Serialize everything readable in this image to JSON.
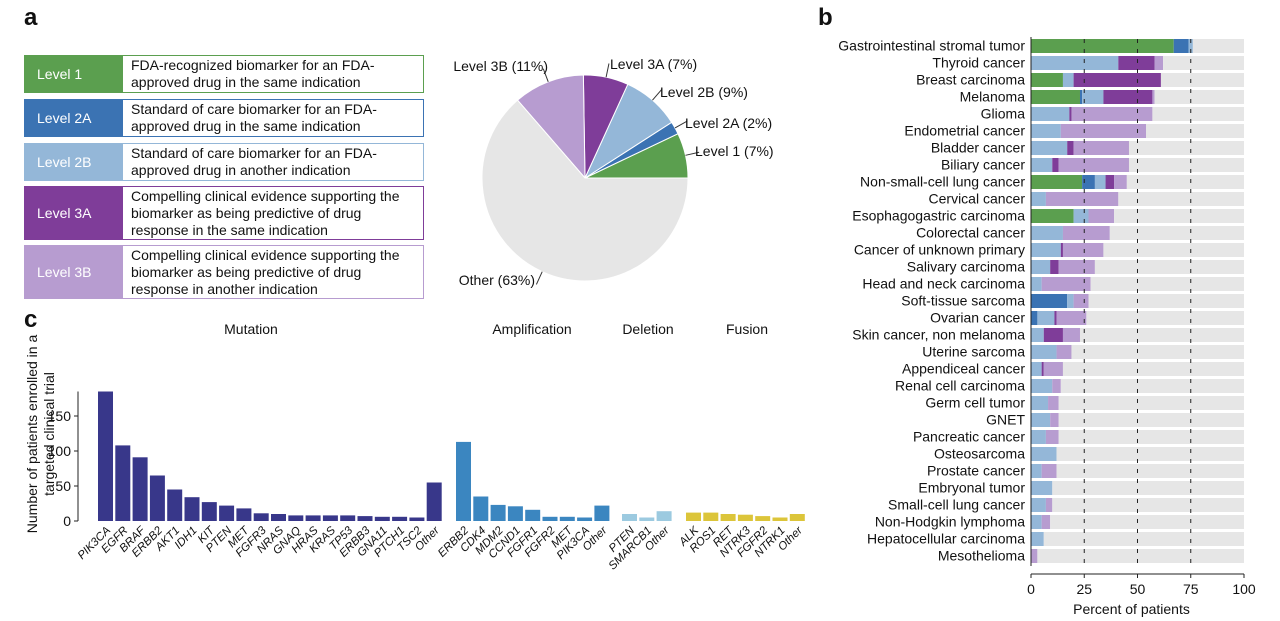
{
  "panel_labels": {
    "a": "a",
    "b": "b",
    "c": "c"
  },
  "levels": [
    {
      "label": "Level 1",
      "color": "#5b9f4f",
      "border": "#5b9f4f",
      "description": "FDA-recognized biomarker for an FDA-approved drug in the same indication"
    },
    {
      "label": "Level 2A",
      "color": "#3b73b3",
      "border": "#3b73b3",
      "description": "Standard of care biomarker for an FDA-approved drug in the same indication"
    },
    {
      "label": "Level 2B",
      "color": "#94b7d8",
      "border": "#94b7d8",
      "description": "Standard of care biomarker for an FDA-approved drug in another indication"
    },
    {
      "label": "Level 3A",
      "color": "#7f3d99",
      "border": "#7f3d99",
      "description": "Compelling clinical evidence supporting the biomarker as being predictive of drug response in the same indication"
    },
    {
      "label": "Level 3B",
      "color": "#b79cd0",
      "border": "#b79cd0",
      "description": "Compelling clinical evidence supporting the biomarker as being predictive of drug response in another indication"
    }
  ],
  "chart_data": [
    {
      "id": "pie",
      "type": "pie",
      "slices": [
        {
          "name": "Level 1",
          "value": 7,
          "label": "Level 1 (7%)",
          "color": "#5b9f4f"
        },
        {
          "name": "Level 2A",
          "value": 2,
          "label": "Level 2A (2%)",
          "color": "#3b73b3"
        },
        {
          "name": "Level 2B",
          "value": 9,
          "label": "Level 2B (9%)",
          "color": "#94b7d8"
        },
        {
          "name": "Level 3A",
          "value": 7,
          "label": "Level 3A (7%)",
          "color": "#7f3d99"
        },
        {
          "name": "Level 3B",
          "value": 11,
          "label": "Level 3B (11%)",
          "color": "#b79cd0"
        },
        {
          "name": "Other",
          "value": 63,
          "label": "Other (63%)",
          "color": "#e6e6e6"
        }
      ]
    },
    {
      "id": "stacked",
      "type": "bar",
      "orientation": "horizontal",
      "stacked": true,
      "xlabel": "Percent of patients",
      "xlim": [
        0,
        100
      ],
      "xticks": [
        0,
        25,
        50,
        75,
        100
      ],
      "dashed_lines_at": [
        25,
        50,
        75
      ],
      "series_order": [
        "Level 1",
        "Level 2A",
        "Level 2B",
        "Level 3A",
        "Level 3B",
        "Other"
      ],
      "colors": [
        "#5b9f4f",
        "#3b73b3",
        "#94b7d8",
        "#7f3d99",
        "#b79cd0",
        "#e6e6e6"
      ],
      "rows": [
        {
          "name": "Gastrointestinal stromal tumor",
          "values": [
            67,
            7,
            2,
            0,
            0,
            24
          ]
        },
        {
          "name": "Thyroid cancer",
          "values": [
            0,
            0,
            41,
            17,
            4,
            38
          ]
        },
        {
          "name": "Breast carcinoma",
          "values": [
            15,
            0,
            5,
            41,
            0,
            39
          ]
        },
        {
          "name": "Melanoma",
          "values": [
            23,
            1,
            10,
            23,
            1,
            42
          ]
        },
        {
          "name": "Glioma",
          "values": [
            0,
            0,
            18,
            1,
            38,
            43
          ]
        },
        {
          "name": "Endometrial cancer",
          "values": [
            0,
            0,
            14,
            0,
            40,
            46
          ]
        },
        {
          "name": "Bladder cancer",
          "values": [
            0,
            0,
            17,
            3,
            26,
            54
          ]
        },
        {
          "name": "Biliary cancer",
          "values": [
            0,
            0,
            10,
            3,
            33,
            54
          ]
        },
        {
          "name": "Non-small-cell lung cancer",
          "values": [
            24,
            6,
            5,
            4,
            6,
            55
          ]
        },
        {
          "name": "Cervical cancer",
          "values": [
            0,
            0,
            7,
            0,
            34,
            59
          ]
        },
        {
          "name": "Esophagogastric carcinoma",
          "values": [
            20,
            0,
            7,
            0,
            12,
            61
          ]
        },
        {
          "name": "Colorectal cancer",
          "values": [
            0,
            0,
            15,
            0,
            22,
            63
          ]
        },
        {
          "name": "Cancer of unknown primary",
          "values": [
            0,
            0,
            14,
            1,
            19,
            66
          ]
        },
        {
          "name": "Salivary carcinoma",
          "values": [
            0,
            0,
            9,
            4,
            17,
            70
          ]
        },
        {
          "name": "Head and neck carcinoma",
          "values": [
            0,
            0,
            5,
            0,
            23,
            72
          ]
        },
        {
          "name": "Soft-tissue sarcoma",
          "values": [
            0,
            17,
            3,
            0,
            7,
            73
          ]
        },
        {
          "name": "Ovarian cancer",
          "values": [
            0,
            3,
            8,
            1,
            14,
            74
          ]
        },
        {
          "name": "Skin cancer, non melanoma",
          "values": [
            0,
            0,
            6,
            9,
            8,
            77
          ]
        },
        {
          "name": "Uterine sarcoma",
          "values": [
            0,
            0,
            12,
            0,
            7,
            81
          ]
        },
        {
          "name": "Appendiceal cancer",
          "values": [
            0,
            0,
            5,
            1,
            9,
            85
          ]
        },
        {
          "name": "Renal cell carcinoma",
          "values": [
            0,
            0,
            10,
            0,
            4,
            86
          ]
        },
        {
          "name": "Germ cell tumor",
          "values": [
            0,
            0,
            8,
            0,
            5,
            87
          ]
        },
        {
          "name": "GNET",
          "values": [
            0,
            0,
            9,
            0,
            4,
            87
          ]
        },
        {
          "name": "Pancreatic cancer",
          "values": [
            0,
            0,
            7,
            0,
            6,
            87
          ]
        },
        {
          "name": "Osteosarcoma",
          "values": [
            0,
            0,
            12,
            0,
            0,
            88
          ]
        },
        {
          "name": "Prostate cancer",
          "values": [
            0,
            0,
            5,
            0,
            7,
            88
          ]
        },
        {
          "name": "Embryonal tumor",
          "values": [
            0,
            0,
            10,
            0,
            0,
            90
          ]
        },
        {
          "name": "Small-cell lung cancer",
          "values": [
            0,
            0,
            7,
            0,
            3,
            90
          ]
        },
        {
          "name": "Non-Hodgkin lymphoma",
          "values": [
            0,
            0,
            5,
            0,
            4,
            91
          ]
        },
        {
          "name": "Hepatocellular carcinoma",
          "values": [
            0,
            0,
            6,
            0,
            0,
            94
          ]
        },
        {
          "name": "Mesothelioma",
          "values": [
            0,
            0,
            0,
            0,
            3,
            97
          ]
        }
      ]
    },
    {
      "id": "genes",
      "type": "bar",
      "ylabel": "Number of patients enrolled in a targeted clinical trial",
      "ylim": [
        0,
        190
      ],
      "yticks": [
        0,
        50,
        100,
        150
      ],
      "groups": [
        {
          "name": "Mutation",
          "color": "#38378a",
          "categories": [
            "PIK3CA",
            "EGFR",
            "BRAF",
            "ERBB2",
            "AKT1",
            "IDH1",
            "KIT",
            "PTEN",
            "MET",
            "FGFR3",
            "NRAS",
            "GNAQ",
            "HRAS",
            "KRAS",
            "TP53",
            "ERBB3",
            "GNA11",
            "PTCH1",
            "TSC2",
            "Other"
          ],
          "values": [
            185,
            108,
            91,
            65,
            45,
            34,
            27,
            22,
            18,
            11,
            10,
            8,
            8,
            8,
            8,
            7,
            6,
            6,
            5,
            55
          ]
        },
        {
          "name": "Amplification",
          "color": "#3b86c0",
          "categories": [
            "ERBB2",
            "CDK4",
            "MDM2",
            "CCND1",
            "FGFR1",
            "FGFR2",
            "MET",
            "PIK3CA",
            "Other"
          ],
          "values": [
            113,
            35,
            23,
            21,
            16,
            6,
            6,
            5,
            22
          ]
        },
        {
          "name": "Deletion",
          "color": "#9ccae0",
          "categories": [
            "PTEN",
            "SMARCB1",
            "Other"
          ],
          "values": [
            10,
            5,
            14
          ]
        },
        {
          "name": "Fusion",
          "color": "#dcc53a",
          "categories": [
            "ALK",
            "ROS1",
            "RET",
            "NTRK3",
            "FGFR2",
            "NTRK1",
            "Other"
          ],
          "values": [
            12,
            12,
            10,
            9,
            7,
            5,
            10
          ]
        }
      ]
    }
  ]
}
